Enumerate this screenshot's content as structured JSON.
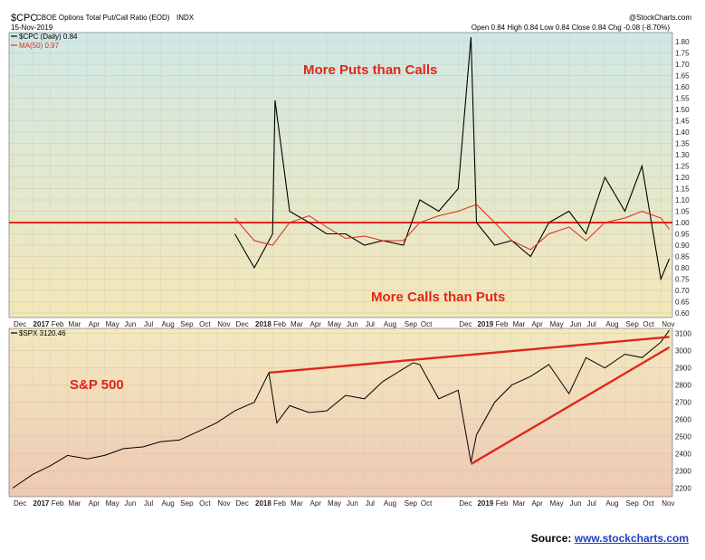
{
  "header": {
    "symbol": "$CPC",
    "description": "CBOE Options Total Put/Call Ratio (EOD)",
    "exchange": "INDX",
    "date": "15-Nov-2019",
    "watermark": "@StockCharts.com",
    "ohlc": "Open 0.84  High 0.84  Low 0.84  Close 0.84  Chg -0.08 (-8.70%)"
  },
  "colors": {
    "top_gradient_top": "#cfe8e6",
    "top_gradient_bottom": "#f4e7b8",
    "bottom_gradient_top": "#f3e8bf",
    "bottom_gradient_bottom": "#eec9b4",
    "price_line": "#000000",
    "ma_line": "#e0261b",
    "annotation": "#e0261b"
  },
  "annotations": {
    "puts": "More Puts than Calls",
    "calls": "More Calls than Puts",
    "spx": "S&P 500"
  },
  "source": {
    "label": "Source:",
    "link": "www.stockcharts.com"
  },
  "chart_data": [
    {
      "type": "line",
      "name": "put_call_ratio",
      "legend": [
        "$CPC (Daily) 0.84",
        "MA(50) 0.97"
      ],
      "series": [
        {
          "name": "$CPC (Daily)",
          "x": [
            "2017-12-01",
            "2018-01-02",
            "2018-02-01",
            "2018-02-05",
            "2018-03-01",
            "2018-04-02",
            "2018-05-01",
            "2018-06-01",
            "2018-07-02",
            "2018-08-01",
            "2018-09-04",
            "2018-10-01",
            "2018-11-01",
            "2018-12-03",
            "2018-12-24",
            "2019-01-02",
            "2019-02-01",
            "2019-03-01",
            "2019-04-01",
            "2019-05-01",
            "2019-06-03",
            "2019-07-01",
            "2019-08-01",
            "2019-09-03",
            "2019-10-01",
            "2019-11-01",
            "2019-11-15"
          ],
          "values": [
            0.95,
            0.8,
            0.95,
            1.54,
            1.05,
            1.0,
            0.95,
            0.95,
            0.9,
            0.92,
            0.9,
            1.1,
            1.05,
            1.15,
            1.82,
            1.0,
            0.9,
            0.92,
            0.85,
            1.0,
            1.05,
            0.95,
            1.2,
            1.05,
            1.25,
            0.75,
            0.84
          ]
        },
        {
          "name": "MA(50)",
          "x": [
            "2017-12-01",
            "2018-01-02",
            "2018-02-01",
            "2018-03-01",
            "2018-04-02",
            "2018-05-01",
            "2018-06-01",
            "2018-07-02",
            "2018-08-01",
            "2018-09-04",
            "2018-10-01",
            "2018-11-01",
            "2018-12-03",
            "2019-01-02",
            "2019-02-01",
            "2019-03-01",
            "2019-04-01",
            "2019-05-01",
            "2019-06-03",
            "2019-07-01",
            "2019-08-01",
            "2019-09-03",
            "2019-10-01",
            "2019-11-01",
            "2019-11-15"
          ],
          "values": [
            1.02,
            0.92,
            0.9,
            1.0,
            1.03,
            0.98,
            0.93,
            0.94,
            0.92,
            0.92,
            1.0,
            1.03,
            1.05,
            1.08,
            1.0,
            0.92,
            0.88,
            0.95,
            0.98,
            0.92,
            1.0,
            1.02,
            1.05,
            1.02,
            0.97
          ]
        }
      ],
      "reference_line": 1.0,
      "ylim": [
        0.58,
        1.84
      ],
      "y_ticks": [
        "1.80",
        "1.75",
        "1.70",
        "1.65",
        "1.60",
        "1.55",
        "1.50",
        "1.45",
        "1.40",
        "1.35",
        "1.30",
        "1.25",
        "1.20",
        "1.15",
        "1.10",
        "1.05",
        "1.00",
        "0.95",
        "0.90",
        "0.85",
        "0.80",
        "0.75",
        "0.70",
        "0.65",
        "0.60"
      ],
      "x_ticks": [
        "Dec",
        "2017",
        "Feb",
        "Mar",
        "Apr",
        "May",
        "Jun",
        "Jul",
        "Aug",
        "Sep",
        "Oct",
        "Nov",
        "Dec",
        "2018",
        "Feb",
        "Mar",
        "Apr",
        "May",
        "Jun",
        "Jul",
        "Aug",
        "Sep",
        "Oct",
        "Dec",
        "2019",
        "Feb",
        "Mar",
        "Apr",
        "May",
        "Jun",
        "Jul",
        "Aug",
        "Sep",
        "Oct",
        "Nov"
      ]
    },
    {
      "type": "line",
      "name": "spx",
      "legend": [
        "$SPX 3120.46"
      ],
      "series": [
        {
          "name": "$SPX",
          "x": [
            "2016-12-01",
            "2017-01-03",
            "2017-02-01",
            "2017-03-01",
            "2017-04-03",
            "2017-05-01",
            "2017-06-01",
            "2017-07-03",
            "2017-08-01",
            "2017-09-01",
            "2017-10-02",
            "2017-11-01",
            "2017-12-01",
            "2018-01-02",
            "2018-01-26",
            "2018-02-08",
            "2018-03-01",
            "2018-04-02",
            "2018-05-01",
            "2018-06-01",
            "2018-07-02",
            "2018-08-01",
            "2018-09-20",
            "2018-10-01",
            "2018-11-01",
            "2018-12-03",
            "2018-12-24",
            "2019-01-02",
            "2019-02-01",
            "2019-03-01",
            "2019-04-01",
            "2019-05-01",
            "2019-06-03",
            "2019-07-01",
            "2019-08-01",
            "2019-09-03",
            "2019-10-01",
            "2019-11-01",
            "2019-11-15"
          ],
          "values": [
            2200,
            2280,
            2330,
            2390,
            2370,
            2390,
            2430,
            2440,
            2470,
            2480,
            2530,
            2580,
            2650,
            2700,
            2872,
            2580,
            2680,
            2640,
            2650,
            2740,
            2720,
            2820,
            2930,
            2920,
            2720,
            2770,
            2350,
            2510,
            2700,
            2800,
            2850,
            2920,
            2750,
            2960,
            2900,
            2980,
            2960,
            3050,
            3120
          ]
        }
      ],
      "trendlines": [
        {
          "name": "upper",
          "x": [
            "2018-01-26",
            "2019-11-15"
          ],
          "values": [
            2872,
            3080
          ]
        },
        {
          "name": "lower",
          "x": [
            "2018-12-24",
            "2019-11-15"
          ],
          "values": [
            2340,
            3020
          ]
        }
      ],
      "ylim": [
        2150,
        3130
      ],
      "y_ticks": [
        "3100",
        "3000",
        "2900",
        "2800",
        "2700",
        "2600",
        "2500",
        "2400",
        "2300",
        "2200"
      ],
      "x_ticks": [
        "Dec",
        "2017",
        "Feb",
        "Mar",
        "Apr",
        "May",
        "Jun",
        "Jul",
        "Aug",
        "Sep",
        "Oct",
        "Nov",
        "Dec",
        "2018",
        "Feb",
        "Mar",
        "Apr",
        "May",
        "Jun",
        "Jul",
        "Aug",
        "Sep",
        "Oct",
        "Dec",
        "2019",
        "Feb",
        "Mar",
        "Apr",
        "May",
        "Jun",
        "Jul",
        "Aug",
        "Sep",
        "Oct",
        "Nov"
      ]
    }
  ]
}
